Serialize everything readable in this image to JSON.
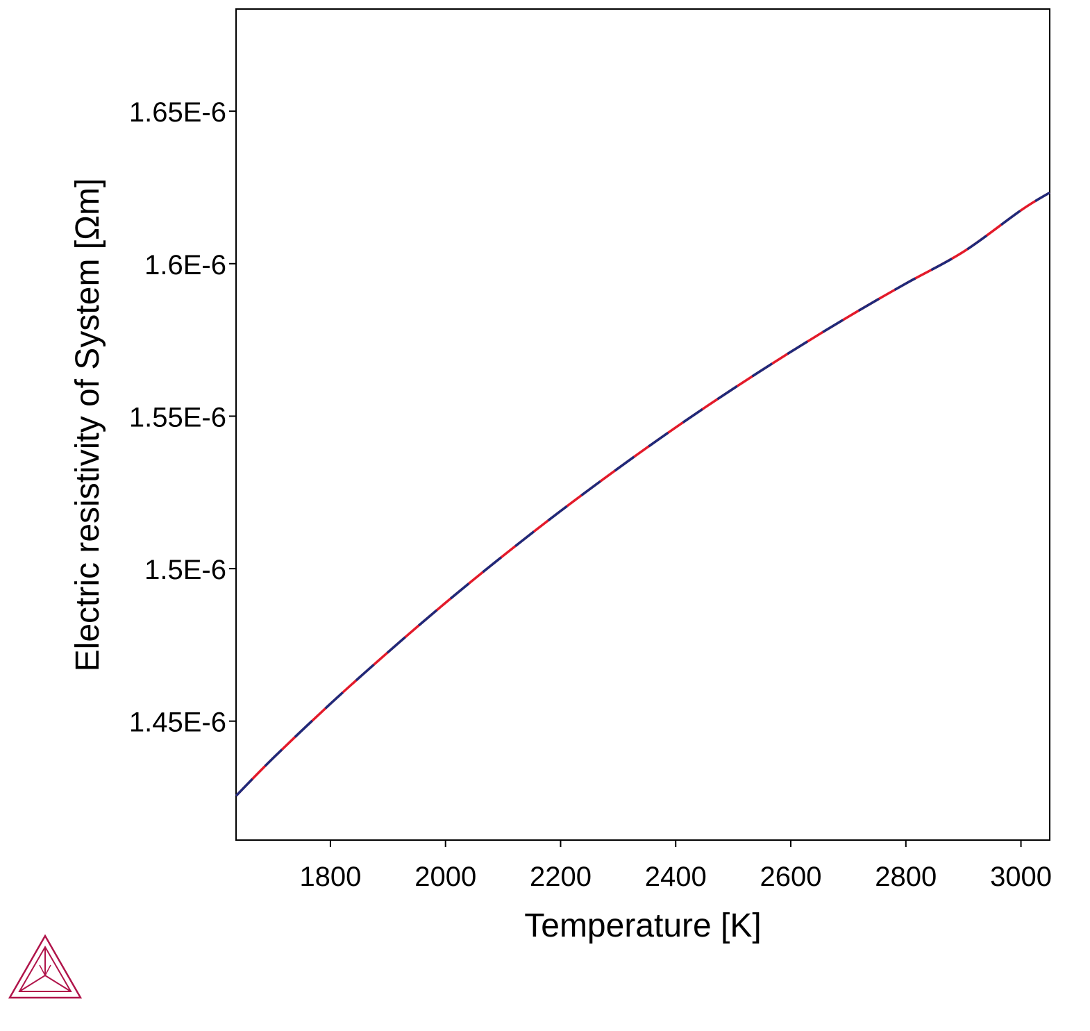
{
  "chart_data": {
    "type": "line",
    "xlabel": "Temperature [K]",
    "ylabel": "Electric resistivity of System [Ωm]",
    "xlim": [
      1636,
      3050
    ],
    "ylim": [
      1.411e-06,
      1.6835e-06
    ],
    "x_ticks": [
      1800,
      2000,
      2200,
      2400,
      2600,
      2800,
      3000
    ],
    "x_tick_labels": [
      "1800",
      "2000",
      "2200",
      "2400",
      "2600",
      "2800",
      "3000"
    ],
    "y_ticks": [
      1.45e-06,
      1.5e-06,
      1.55e-06,
      1.6e-06,
      1.65e-06
    ],
    "y_tick_labels": [
      "1.45E-6",
      "1.5E-6",
      "1.55E-6",
      "1.6E-6",
      "1.65E-6"
    ],
    "grid": false,
    "series": [
      {
        "color": "#e31a2a",
        "style": "solid",
        "x": [
          1636,
          1700,
          1800,
          1900,
          2000,
          2100,
          2200,
          2300,
          2400,
          2500,
          2600,
          2700,
          2800,
          2900,
          3000,
          3050
        ],
        "values": [
          1.4255e-06,
          1.4378e-06,
          1.4557e-06,
          1.4726e-06,
          1.4888e-06,
          1.5042e-06,
          1.5189e-06,
          1.5329e-06,
          1.5463e-06,
          1.559e-06,
          1.5711e-06,
          1.5826e-06,
          1.5935e-06,
          1.6039e-06,
          1.6175e-06,
          1.6233e-06
        ]
      },
      {
        "color": "#1f2a7a",
        "style": "dashed",
        "x": [
          1636,
          1700,
          1800,
          1900,
          2000,
          2100,
          2200,
          2300,
          2400,
          2500,
          2600,
          2700,
          2800,
          2900,
          3000,
          3050
        ],
        "values": [
          1.4255e-06,
          1.4378e-06,
          1.4557e-06,
          1.4726e-06,
          1.4888e-06,
          1.5042e-06,
          1.5189e-06,
          1.5329e-06,
          1.5463e-06,
          1.559e-06,
          1.5711e-06,
          1.5826e-06,
          1.5935e-06,
          1.6039e-06,
          1.6175e-06,
          1.6233e-06
        ]
      }
    ]
  },
  "logo": {
    "icon": "thermo-calc-triangle-logo",
    "color": "#b0144a"
  }
}
